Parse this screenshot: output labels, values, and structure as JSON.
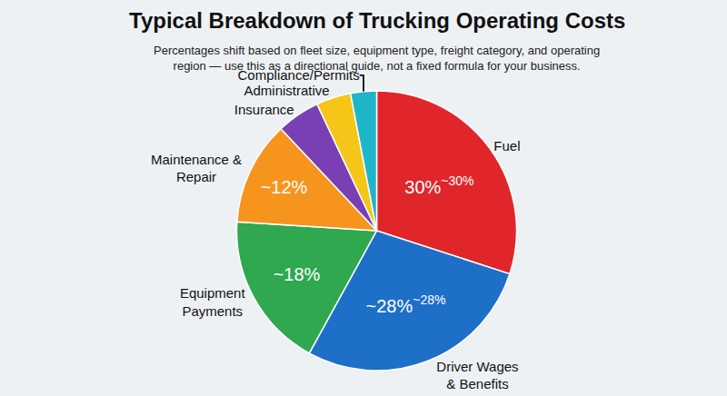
{
  "chart_data": {
    "type": "pie",
    "title": "Typical Breakdown of Trucking Operating Costs",
    "subtitle": "Percentages shift based on fleet size, equipment type, freight category, and operating region — use this as a directional guide, not a fixed formula for your business.",
    "categories": [
      "Fuel",
      "Driver Wages & Benefits",
      "Equipment Payments",
      "Maintenance & Repair",
      "Insurance",
      "Administrative",
      "Compliance/Permits"
    ],
    "values": [
      30,
      28,
      18,
      12,
      5,
      4,
      3
    ],
    "value_labels": [
      "30%",
      "~28%",
      "~18%",
      "~12%",
      null,
      null,
      null
    ],
    "secondary_value_labels": [
      "~30%",
      "~28%",
      null,
      null,
      null,
      null,
      null
    ],
    "colors": [
      "#e0262b",
      "#1e6fc8",
      "#2fa84f",
      "#f7941d",
      "#7b3fb5",
      "#f5c518",
      "#1fb5c9"
    ],
    "data_labels": true
  }
}
